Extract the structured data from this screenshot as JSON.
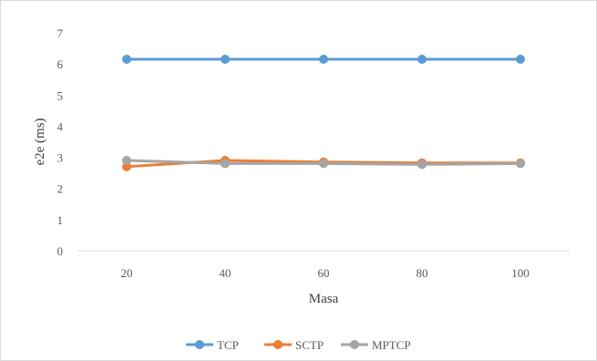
{
  "chart_data": {
    "type": "line",
    "title": "",
    "xlabel": "Masa",
    "ylabel": "e2e (ms)",
    "categories": [
      "20",
      "40",
      "60",
      "80",
      "100"
    ],
    "ylim": [
      0,
      7
    ],
    "yticks": [
      "0",
      "1",
      "2",
      "3",
      "4",
      "5",
      "6",
      "7"
    ],
    "grid": false,
    "legend_position": "bottom",
    "series": [
      {
        "name": "TCP",
        "color": "#5b9bd5",
        "values": [
          6.15,
          6.15,
          6.15,
          6.15,
          6.15
        ]
      },
      {
        "name": "SCTP",
        "color": "#ed7d31",
        "values": [
          2.7,
          2.9,
          2.85,
          2.82,
          2.82
        ]
      },
      {
        "name": "MPTCP",
        "color": "#a5a5a5",
        "values": [
          2.9,
          2.8,
          2.8,
          2.77,
          2.8
        ]
      }
    ]
  }
}
